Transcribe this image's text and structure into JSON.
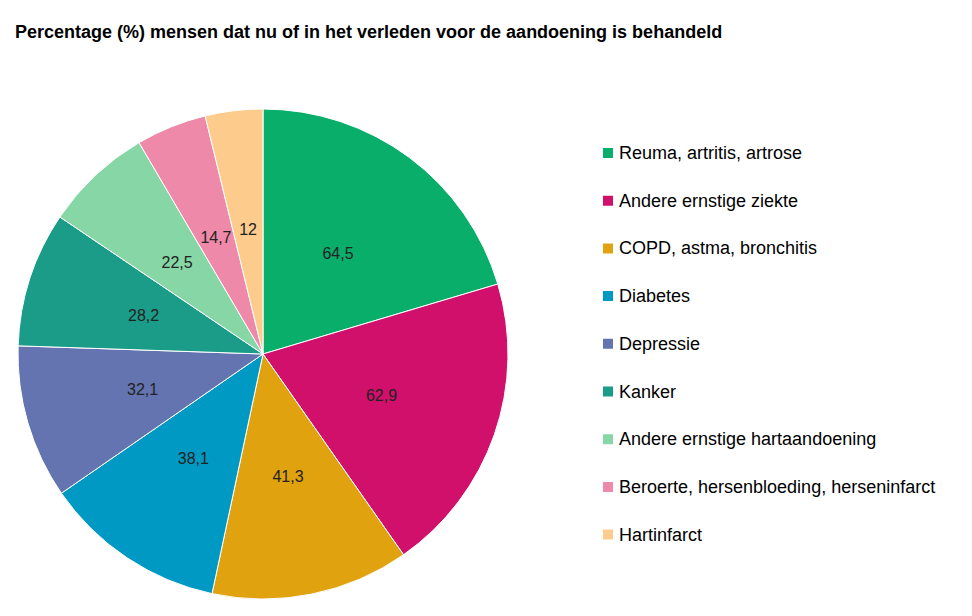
{
  "chart_data": {
    "type": "pie",
    "title": "Percentage (%) mensen dat nu of in het verleden voor de aandoening is behandeld",
    "categories": [
      "Reuma, artritis, artrose",
      "Andere ernstige ziekte",
      "COPD, astma, bronchitis",
      "Diabetes",
      "Depressie",
      "Kanker",
      "Andere ernstige hartaandoening",
      "Beroerte, hersenbloeding, herseninfarct",
      "Hartinfarct"
    ],
    "values": [
      64.5,
      62.9,
      41.3,
      38.1,
      32.1,
      28.2,
      22.5,
      14.7,
      12
    ],
    "value_labels": [
      "64,5",
      "62,9",
      "41,3",
      "38,1",
      "32,1",
      "28,2",
      "22,5",
      "14,7",
      "12"
    ],
    "colors": [
      "#0aae6b",
      "#d0106b",
      "#e0a20e",
      "#0099c4",
      "#6474b0",
      "#1b9c88",
      "#86d6a6",
      "#ee89a9",
      "#fdcc8c"
    ],
    "data_labels": true,
    "legend": "right"
  }
}
